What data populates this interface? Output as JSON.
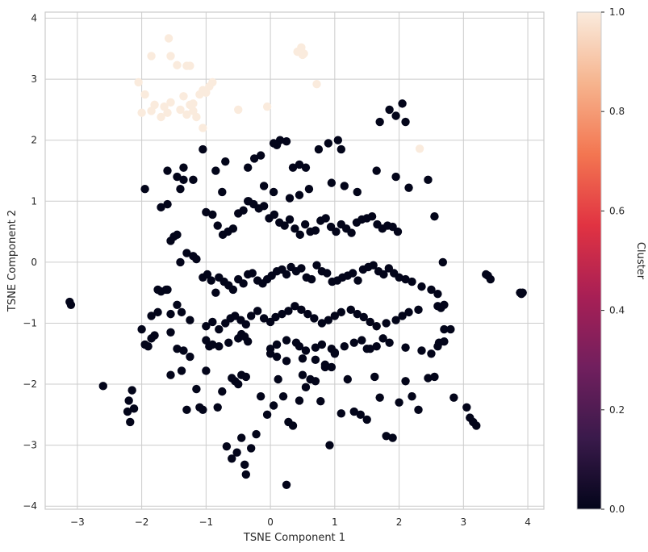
{
  "chart_data": {
    "type": "scatter",
    "title": "",
    "xlabel": "TSNE Component 1",
    "ylabel": "TSNE Component 2",
    "xlim": [
      -3.5,
      4.25
    ],
    "ylim": [
      -4.05,
      4.1
    ],
    "xticks": [
      -3,
      -2,
      -1,
      0,
      1,
      2,
      3,
      4
    ],
    "yticks": [
      -4,
      -3,
      -2,
      -1,
      0,
      1,
      2,
      3,
      4
    ],
    "grid": true,
    "colorbar": {
      "label": "Cluster",
      "min": 0,
      "max": 1,
      "ticks": [
        "0.0",
        "0.2",
        "0.4",
        "0.6",
        "0.8",
        "1.0"
      ],
      "colormap": "rocket",
      "colors": [
        "#03051a",
        "#3a1a4b",
        "#711f5e",
        "#a81f55",
        "#e13342",
        "#f37651",
        "#f6b48e",
        "#faebdd"
      ]
    },
    "series": [
      {
        "cluster": 1,
        "color": "#faebdd",
        "x": [
          -1.58,
          -1.85,
          -1.55,
          -1.45,
          -1.3,
          -1.25,
          -2.05,
          -1.95,
          -1.8,
          -2.0,
          -1.85,
          -1.65,
          -1.55,
          -1.7,
          -1.6,
          -1.4,
          -1.3,
          -1.2,
          -1.35,
          -1.1,
          -1.05,
          -1.0,
          -0.95,
          -0.9,
          -1.2,
          -1.25,
          -1.15,
          -1.05,
          -0.5,
          -0.05,
          0.42,
          0.48,
          0.52,
          0.5,
          0.72,
          2.32
        ],
        "y": [
          3.67,
          3.38,
          3.38,
          3.23,
          3.22,
          3.22,
          2.95,
          2.75,
          2.58,
          2.45,
          2.48,
          2.55,
          2.62,
          2.38,
          2.45,
          2.5,
          2.42,
          2.6,
          2.72,
          2.75,
          2.82,
          2.78,
          2.88,
          2.95,
          2.48,
          2.58,
          2.38,
          2.2,
          2.5,
          2.55,
          3.45,
          3.52,
          3.42,
          3.4,
          2.92,
          1.86
        ]
      },
      {
        "cluster": 0,
        "color": "#03051a",
        "x": [
          -3.12,
          -3.1,
          -2.6,
          -2.2,
          -2.15,
          -2.12,
          -2.18,
          -2.22,
          -1.95,
          -1.9,
          -1.8,
          -1.75,
          -1.7,
          -1.62,
          -1.55,
          -1.45,
          -1.38,
          -1.3,
          -1.15,
          -1.1,
          -1.05,
          -1.0,
          -0.95,
          -0.9,
          -0.82,
          -0.75,
          -0.68,
          -0.6,
          -0.52,
          -0.45,
          -0.4,
          -0.38,
          -0.3,
          -0.22,
          -0.15,
          -0.05,
          0.05,
          0.12,
          0.2,
          0.28,
          0.35,
          0.45,
          0.5,
          0.55,
          0.62,
          0.7,
          0.78,
          0.85,
          0.92,
          1.0,
          1.1,
          1.2,
          1.3,
          1.4,
          1.5,
          1.55,
          1.62,
          1.7,
          1.8,
          1.9,
          2.0,
          2.1,
          2.2,
          2.3,
          2.45,
          2.55,
          2.62,
          2.7,
          2.8,
          2.85,
          3.05,
          3.1,
          3.15,
          3.2,
          3.35,
          3.38,
          3.42,
          3.88,
          3.9,
          3.92,
          -1.6,
          -1.55,
          -1.5,
          -1.45,
          -1.4,
          -1.3,
          -1.2,
          -1.15,
          -1.05,
          -0.98,
          -0.92,
          -0.85,
          -0.8,
          -0.72,
          -0.65,
          -0.58,
          -0.5,
          -0.42,
          -0.35,
          -0.28,
          -0.2,
          -0.12,
          -0.05,
          0.02,
          0.1,
          0.18,
          0.25,
          0.32,
          0.4,
          0.48,
          0.56,
          0.64,
          0.72,
          0.8,
          0.88,
          0.96,
          1.04,
          1.12,
          1.2,
          1.28,
          1.36,
          1.44,
          1.52,
          1.6,
          1.68,
          1.76,
          1.84,
          1.92,
          2.0,
          2.1,
          2.2,
          2.35,
          2.5,
          2.6,
          2.68,
          -1.0,
          -0.9,
          -0.82,
          -0.74,
          -0.66,
          -0.58,
          -0.5,
          -0.42,
          -0.34,
          -0.26,
          -0.18,
          -0.1,
          -0.02,
          0.06,
          0.14,
          0.22,
          0.3,
          0.38,
          0.46,
          0.54,
          0.62,
          0.7,
          0.78,
          0.86,
          0.94,
          1.02,
          1.1,
          1.18,
          1.26,
          1.34,
          1.42,
          1.5,
          1.58,
          1.66,
          1.74,
          1.82,
          1.9,
          1.98,
          -1.85,
          -1.75,
          -1.55,
          -1.45,
          -1.38,
          -1.25,
          -1.0,
          -0.9,
          -0.8,
          -0.7,
          -0.62,
          -0.55,
          -0.46,
          -0.38,
          -0.3,
          -0.2,
          -0.1,
          0.0,
          0.08,
          0.18,
          0.28,
          0.38,
          0.48,
          0.58,
          0.68,
          0.8,
          0.9,
          1.0,
          1.1,
          1.25,
          1.35,
          1.45,
          1.55,
          1.65,
          1.8,
          1.95,
          2.05,
          2.15,
          2.3,
          2.6,
          2.65,
          2.7,
          -2.0,
          -1.85,
          -1.55,
          -1.35,
          -1.25,
          -1.0,
          -0.8,
          -0.65,
          -0.5,
          -0.45,
          -0.4,
          -0.35,
          0.0,
          0.1,
          0.25,
          0.4,
          0.45,
          0.55,
          0.7,
          0.8,
          0.95,
          1.0,
          1.15,
          1.3,
          1.42,
          1.5,
          1.65,
          1.75,
          1.85,
          2.1,
          2.35,
          2.5,
          2.6,
          2.7,
          -0.6,
          -0.55,
          -0.5,
          -0.45,
          -0.38,
          0.0,
          0.1,
          0.25,
          0.5,
          0.7,
          0.85,
          0.95,
          -1.4,
          -1.6,
          -1.35,
          -0.75,
          -0.35,
          -0.1,
          0.05,
          0.3,
          0.45,
          0.6,
          0.95,
          1.15,
          1.35,
          1.65,
          1.95,
          2.15,
          2.45,
          2.55,
          1.85,
          1.95,
          2.05,
          2.1,
          1.7,
          1.1,
          1.05,
          0.9,
          0.75,
          0.55,
          0.45,
          0.35,
          0.25,
          0.15,
          0.1,
          0.05,
          -0.15,
          -0.25,
          -0.35,
          -0.7,
          -0.85,
          -1.05,
          -1.2,
          -1.35,
          -1.45,
          -1.6,
          -1.95,
          -1.7,
          0.25
        ],
        "y": [
          -0.65,
          -0.7,
          -2.03,
          -2.27,
          -2.1,
          -2.4,
          -2.62,
          -2.45,
          -1.35,
          -1.38,
          -1.2,
          -0.45,
          -0.48,
          -0.45,
          -1.85,
          -1.42,
          -1.78,
          -2.42,
          -2.08,
          -2.38,
          -2.42,
          -1.78,
          -1.38,
          -1.35,
          -2.38,
          -2.12,
          -3.02,
          -3.22,
          -3.12,
          -2.88,
          -3.32,
          -3.48,
          -3.05,
          -2.82,
          -2.2,
          -2.5,
          -2.35,
          -1.92,
          -2.2,
          -2.62,
          -2.68,
          -2.27,
          -1.85,
          -2.05,
          -1.92,
          -1.95,
          -2.28,
          -1.72,
          -3.0,
          -1.5,
          -2.48,
          -1.92,
          -2.45,
          -2.5,
          -2.58,
          -1.42,
          -1.88,
          -2.22,
          -2.85,
          -2.88,
          -2.3,
          -1.95,
          -2.2,
          -2.42,
          -1.9,
          -1.88,
          -1.32,
          -1.1,
          -1.1,
          -2.22,
          -2.38,
          -2.55,
          -2.62,
          -2.68,
          -0.2,
          -0.22,
          -0.28,
          -0.5,
          -0.52,
          -0.5,
          -0.45,
          0.35,
          0.42,
          0.45,
          0.0,
          0.15,
          0.1,
          0.05,
          -0.25,
          -0.2,
          -0.3,
          -0.5,
          -0.25,
          -0.32,
          -0.38,
          -0.45,
          -0.28,
          -0.35,
          -0.2,
          -0.18,
          -0.3,
          -0.35,
          -0.28,
          -0.22,
          -0.15,
          -0.12,
          -0.2,
          -0.08,
          -0.15,
          -0.1,
          -0.25,
          -0.28,
          -0.05,
          -0.15,
          -0.18,
          -0.32,
          -0.3,
          -0.25,
          -0.22,
          -0.18,
          -0.3,
          -0.12,
          -0.08,
          -0.05,
          -0.15,
          -0.2,
          -0.1,
          -0.18,
          -0.25,
          -0.28,
          -0.32,
          -0.4,
          -0.45,
          -0.52,
          0.0,
          0.82,
          0.78,
          0.6,
          0.45,
          0.5,
          0.55,
          0.8,
          0.85,
          1.0,
          0.95,
          0.88,
          0.92,
          0.72,
          0.78,
          0.65,
          0.6,
          0.7,
          0.55,
          0.45,
          0.62,
          0.5,
          0.52,
          0.68,
          0.72,
          0.58,
          0.5,
          0.62,
          0.55,
          0.48,
          0.65,
          0.7,
          0.72,
          0.75,
          0.62,
          0.55,
          0.6,
          0.58,
          0.5,
          -0.88,
          -0.82,
          -0.85,
          -0.7,
          -0.82,
          -0.95,
          -1.05,
          -0.98,
          -1.1,
          -1.0,
          -0.92,
          -0.88,
          -0.95,
          -1.02,
          -0.88,
          -0.8,
          -0.92,
          -0.98,
          -0.9,
          -0.85,
          -0.8,
          -0.72,
          -0.78,
          -0.85,
          -0.92,
          -1.0,
          -0.95,
          -0.88,
          -0.82,
          -0.78,
          -0.85,
          -0.9,
          -0.98,
          -1.05,
          -1.0,
          -0.95,
          -0.88,
          -0.82,
          -0.78,
          -0.72,
          -0.75,
          -0.7,
          -1.1,
          -1.25,
          -1.15,
          -1.45,
          -1.55,
          -1.28,
          -1.38,
          -1.32,
          -1.25,
          -1.18,
          -1.22,
          -1.3,
          -1.42,
          -1.35,
          -1.28,
          -1.32,
          -1.38,
          -1.45,
          -1.4,
          -1.35,
          -1.42,
          -1.48,
          -1.38,
          -1.32,
          -1.28,
          -1.42,
          -1.38,
          -1.25,
          -1.32,
          -1.4,
          -1.45,
          -1.5,
          -1.38,
          -1.3,
          -1.9,
          -1.95,
          -2.0,
          -1.85,
          -1.88,
          -1.5,
          -1.55,
          -1.62,
          -1.58,
          -1.6,
          -1.68,
          -1.72,
          1.2,
          0.95,
          1.35,
          1.15,
          1.0,
          1.25,
          1.15,
          1.05,
          1.1,
          1.2,
          1.3,
          1.25,
          1.15,
          1.5,
          1.4,
          1.22,
          1.35,
          0.75,
          2.5,
          2.4,
          2.6,
          2.3,
          2.3,
          1.85,
          2.0,
          1.95,
          1.85,
          1.55,
          1.6,
          1.55,
          1.98,
          2.0,
          1.92,
          1.95,
          1.75,
          1.7,
          1.55,
          1.65,
          1.5,
          1.85,
          1.35,
          1.55,
          1.4,
          1.5,
          1.2,
          0.9,
          -3.65
        ]
      }
    ]
  }
}
